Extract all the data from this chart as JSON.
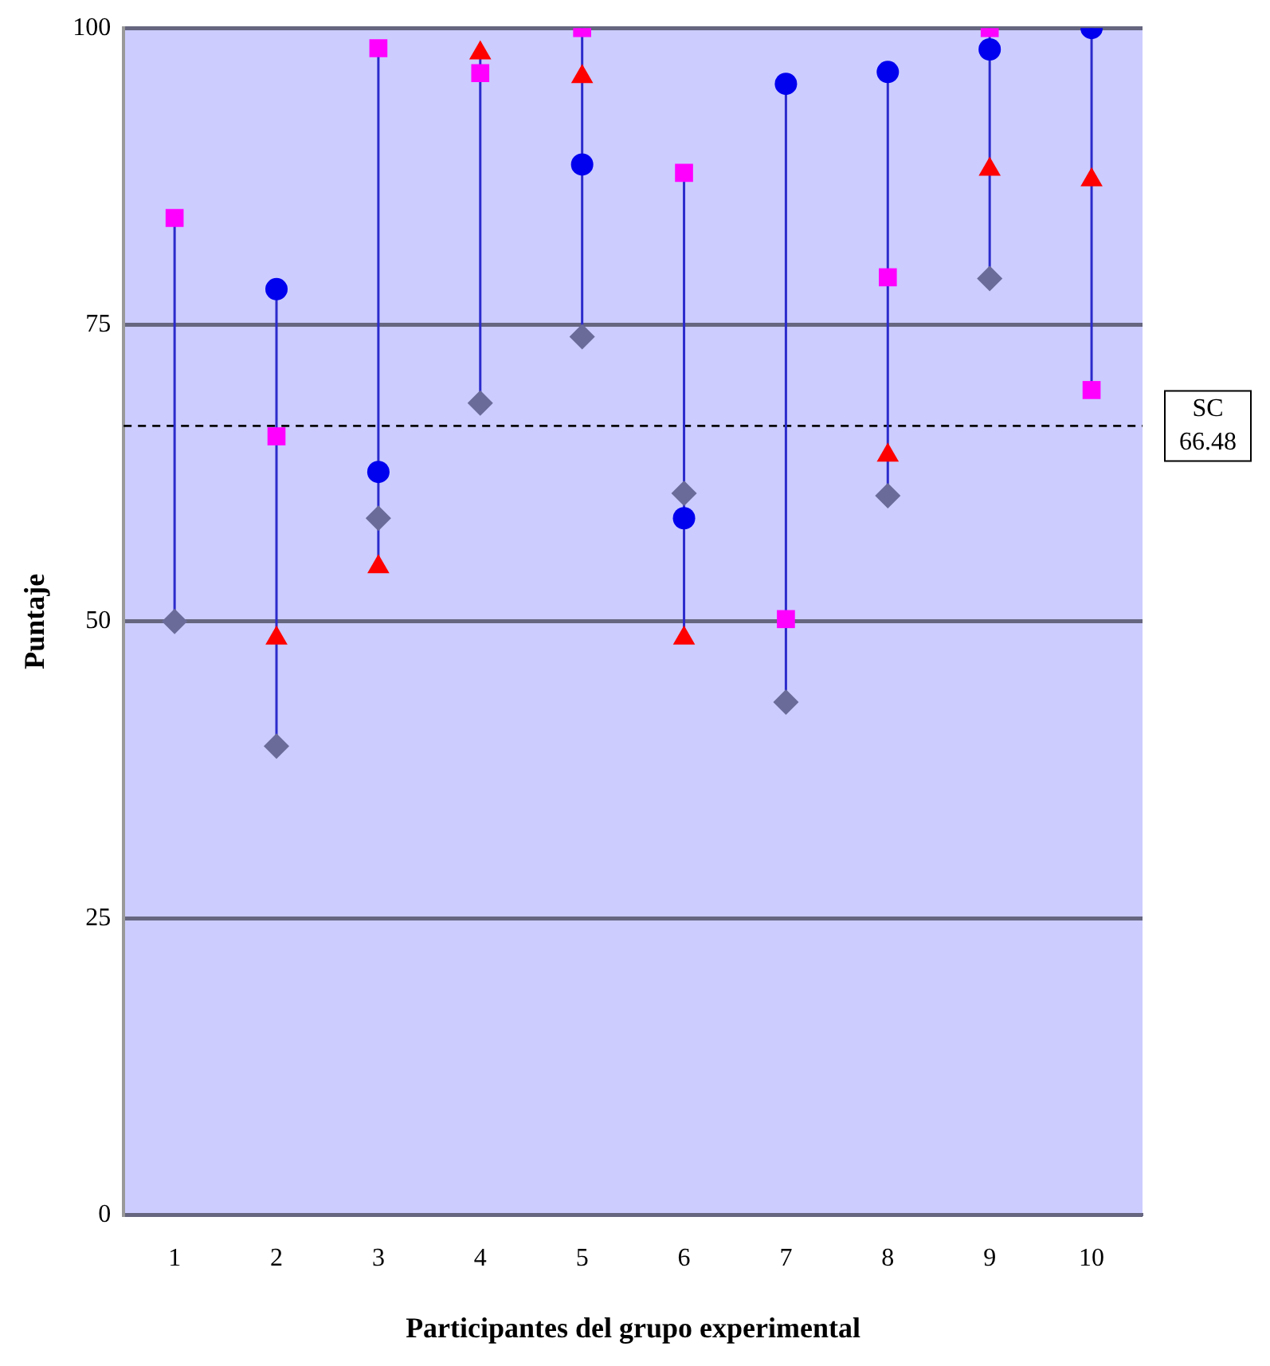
{
  "chart_data": {
    "type": "scatter",
    "xlabel": "Participantes del grupo experimental",
    "ylabel": "Puntaje",
    "categories": [
      "1",
      "2",
      "3",
      "4",
      "5",
      "6",
      "7",
      "8",
      "9",
      "10"
    ],
    "series": [
      {
        "color": "#6b6b99",
        "marker": "diamond",
        "values": [
          50,
          39.5,
          58.7,
          68.4,
          74,
          60.8,
          43.2,
          60.6,
          78.9,
          null
        ]
      },
      {
        "color": "#0000ee",
        "marker": "circle",
        "values": [
          null,
          78,
          62.6,
          null,
          88.5,
          58.7,
          95.3,
          96.3,
          98.2,
          100
        ]
      },
      {
        "color": "#ff0000",
        "marker": "triangle",
        "values": [
          null,
          48.6,
          54.6,
          97.9,
          95.9,
          48.6,
          null,
          64,
          88.1,
          87.2
        ]
      },
      {
        "color": "#ff00ff",
        "marker": "square",
        "values": [
          84,
          65.6,
          98.3,
          96.2,
          100,
          87.8,
          50.2,
          79,
          100,
          69.5
        ]
      }
    ],
    "ylim": [
      0,
      100
    ],
    "yticks": [
      0,
      25,
      50,
      75,
      100
    ],
    "grid": "y",
    "legend": false,
    "ref_lines": [
      {
        "axis": "y",
        "value": 66.48,
        "label": "SC 66.48",
        "line_style": "dashed",
        "color": "#000000"
      }
    ]
  }
}
